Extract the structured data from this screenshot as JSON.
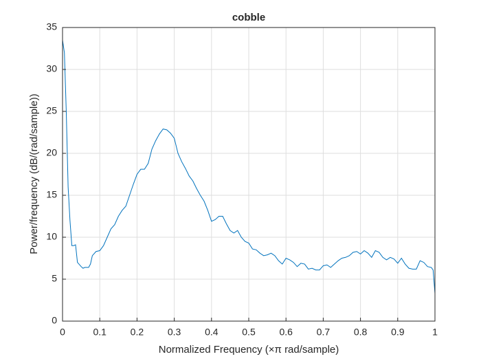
{
  "chart_data": {
    "type": "line",
    "title": "cobble",
    "xlabel": "Normalized Frequency  (×π rad/sample)",
    "ylabel": "Power/frequency (dB/(rad/sample))",
    "color": "#0072bd",
    "grid": true,
    "xlim": [
      0,
      1
    ],
    "ylim": [
      0,
      35
    ],
    "xticks": [
      0,
      0.1,
      0.2,
      0.3,
      0.4,
      0.5,
      0.6,
      0.7,
      0.8,
      0.9,
      1
    ],
    "yticks": [
      0,
      5,
      10,
      15,
      20,
      25,
      30,
      35
    ],
    "x": [
      0,
      0.005,
      0.01,
      0.015,
      0.02,
      0.025,
      0.03,
      0.035,
      0.04,
      0.05,
      0.055,
      0.06,
      0.07,
      0.075,
      0.08,
      0.09,
      0.1,
      0.11,
      0.12,
      0.13,
      0.14,
      0.15,
      0.16,
      0.17,
      0.18,
      0.19,
      0.2,
      0.21,
      0.22,
      0.23,
      0.24,
      0.25,
      0.26,
      0.27,
      0.28,
      0.29,
      0.3,
      0.31,
      0.32,
      0.33,
      0.34,
      0.35,
      0.36,
      0.37,
      0.38,
      0.39,
      0.4,
      0.41,
      0.42,
      0.43,
      0.44,
      0.45,
      0.46,
      0.47,
      0.48,
      0.49,
      0.5,
      0.51,
      0.52,
      0.53,
      0.54,
      0.55,
      0.56,
      0.57,
      0.58,
      0.59,
      0.6,
      0.61,
      0.62,
      0.63,
      0.64,
      0.65,
      0.66,
      0.67,
      0.68,
      0.69,
      0.7,
      0.71,
      0.72,
      0.73,
      0.74,
      0.75,
      0.76,
      0.77,
      0.78,
      0.79,
      0.8,
      0.81,
      0.82,
      0.83,
      0.84,
      0.85,
      0.86,
      0.87,
      0.88,
      0.89,
      0.9,
      0.91,
      0.92,
      0.93,
      0.94,
      0.95,
      0.96,
      0.97,
      0.98,
      0.99,
      0.995,
      1
    ],
    "values": [
      33.5,
      32,
      25,
      16,
      12,
      9,
      9,
      9.1,
      7,
      6.5,
      6.3,
      6.4,
      6.4,
      6.8,
      7.8,
      8.3,
      8.4,
      9,
      10,
      11,
      11.5,
      12.5,
      13.2,
      13.7,
      15,
      16.3,
      17.5,
      18.1,
      18.1,
      18.8,
      20.5,
      21.5,
      22.3,
      22.9,
      22.8,
      22.4,
      21.8,
      20,
      19,
      18.2,
      17.3,
      16.7,
      15.8,
      15,
      14.3,
      13.2,
      11.9,
      12.1,
      12.5,
      12.5,
      11.6,
      10.8,
      10.5,
      10.8,
      10,
      9.5,
      9.3,
      8.6,
      8.5,
      8.1,
      7.8,
      7.9,
      8.1,
      7.8,
      7.2,
      6.8,
      7.5,
      7.3,
      7,
      6.5,
      6.9,
      6.8,
      6.2,
      6.3,
      6.1,
      6.1,
      6.6,
      6.7,
      6.4,
      6.8,
      7.2,
      7.5,
      7.6,
      7.8,
      8.2,
      8.3,
      8,
      8.4,
      8.1,
      7.6,
      8.4,
      8.2,
      7.6,
      7.3,
      7.6,
      7.4,
      6.9,
      7.5,
      6.8,
      6.3,
      6.2,
      6.2,
      7.2,
      7,
      6.5,
      6.4,
      6.1,
      3.3
    ]
  }
}
